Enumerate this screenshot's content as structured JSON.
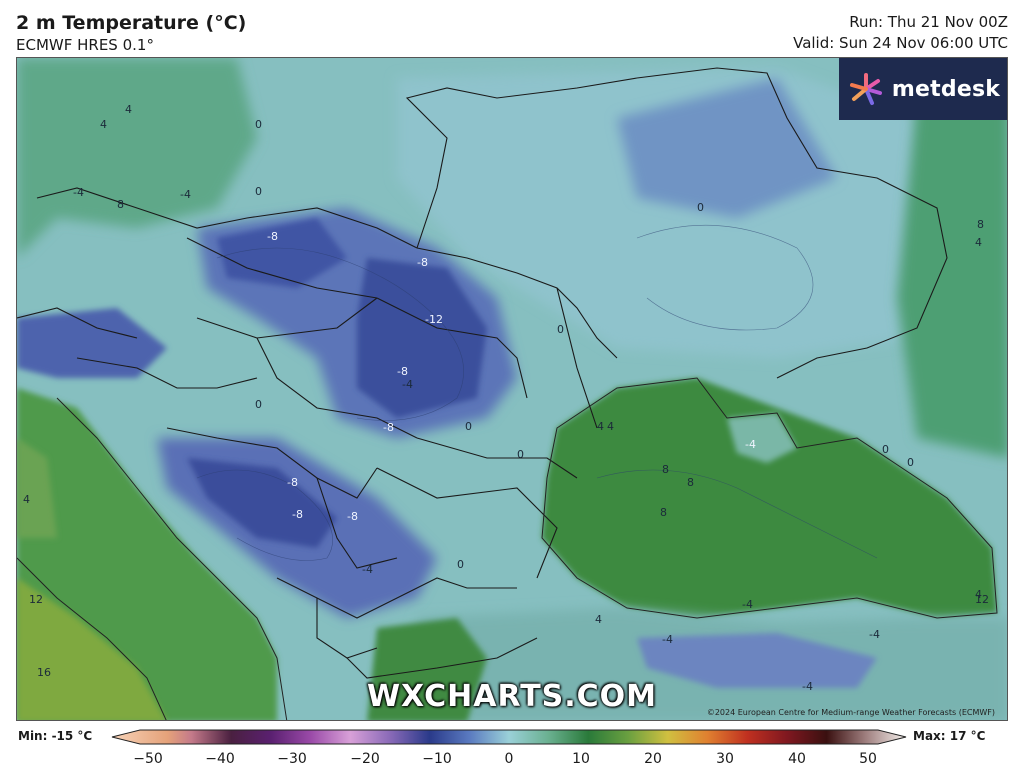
{
  "header": {
    "title": "2 m Temperature (°C)",
    "model": "ECMWF HRES 0.1°",
    "run": "Run: Thu 21 Nov 00Z",
    "valid": "Valid: Sun 24 Nov 06:00 UTC"
  },
  "logo": {
    "text": "metdesk"
  },
  "watermark": "WXCHARTS.COM",
  "copyright": "©2024 European Centre for Medium-range Weather Forecasts (ECMWF)",
  "legend": {
    "min_label": "Min: -15 °C",
    "max_label": "Max: 17 °C",
    "ticks": [
      "−50",
      "−40",
      "−30",
      "−20",
      "−10",
      "0",
      "10",
      "20",
      "30",
      "40",
      "50"
    ]
  },
  "contour_labels": [
    "-8",
    "-12",
    "-8",
    "-8",
    "-4",
    "-8",
    "-8",
    "-8",
    "-8",
    "0",
    "0",
    "0",
    "4",
    "4",
    "8",
    "8",
    "8",
    "4",
    "0",
    "-4",
    "-4",
    "-4",
    "4",
    "0",
    "0",
    "4",
    "8",
    "12",
    "16",
    "12",
    "0",
    "0",
    "-4",
    "-4",
    "-4",
    "-4",
    "4",
    "8",
    "0",
    "0",
    "-4",
    "4",
    "4"
  ],
  "colors": {
    "sea_warm": "#3e8a3f",
    "land_cold": "#5c75b8",
    "land_very_cold": "#3b4f9c",
    "land_cool": "#8ab8c8",
    "land_mild": "#74b59a",
    "italy": "#7fa93f"
  }
}
